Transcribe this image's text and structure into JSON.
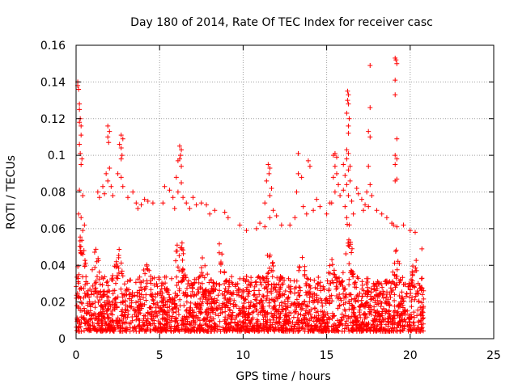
{
  "chart_data": {
    "type": "scatter",
    "title": "Day 180 of 2014, Rate Of TEC Index for receiver casc",
    "xlabel": "GPS time / hours",
    "ylabel": "ROTI / TECUs",
    "xlim": [
      0,
      25
    ],
    "ylim": [
      0,
      0.16
    ],
    "x_ticks": [
      0,
      5,
      10,
      15,
      20,
      25
    ],
    "x_tick_labels": [
      "0",
      "5",
      "10",
      "15",
      "20",
      "25"
    ],
    "y_ticks": [
      0,
      0.02,
      0.04,
      0.06,
      0.08,
      0.1,
      0.12,
      0.14,
      0.16
    ],
    "y_tick_labels": [
      "0",
      "0.02",
      "0.04",
      "0.06",
      "0.08",
      "0.1",
      "0.12",
      "0.14",
      "0.16"
    ],
    "grid": true,
    "marker": "plus",
    "marker_color": "#ff0000",
    "series": [
      {
        "name": "ROTI",
        "points": [
          [
            0.1,
            0.138
          ],
          [
            0.1,
            0.14
          ],
          [
            0.15,
            0.136
          ],
          [
            0.2,
            0.128
          ],
          [
            0.2,
            0.125
          ],
          [
            0.25,
            0.12
          ],
          [
            0.2,
            0.118
          ],
          [
            0.3,
            0.116
          ],
          [
            0.3,
            0.111
          ],
          [
            0.2,
            0.106
          ],
          [
            0.25,
            0.101
          ],
          [
            0.35,
            0.098
          ],
          [
            0.3,
            0.095
          ],
          [
            0.2,
            0.081
          ],
          [
            0.4,
            0.078
          ],
          [
            0.15,
            0.068
          ],
          [
            0.3,
            0.066
          ],
          [
            0.5,
            0.062
          ],
          [
            0.4,
            0.059
          ],
          [
            1.6,
            0.083
          ],
          [
            1.3,
            0.08
          ],
          [
            1.7,
            0.079
          ],
          [
            1.4,
            0.077
          ],
          [
            1.9,
            0.116
          ],
          [
            2.0,
            0.113
          ],
          [
            1.9,
            0.11
          ],
          [
            1.95,
            0.107
          ],
          [
            2.0,
            0.093
          ],
          [
            1.8,
            0.09
          ],
          [
            1.9,
            0.086
          ],
          [
            2.1,
            0.083
          ],
          [
            2.2,
            0.078
          ],
          [
            2.7,
            0.111
          ],
          [
            2.8,
            0.109
          ],
          [
            2.6,
            0.106
          ],
          [
            2.7,
            0.104
          ],
          [
            2.75,
            0.1
          ],
          [
            2.7,
            0.098
          ],
          [
            2.5,
            0.09
          ],
          [
            2.7,
            0.088
          ],
          [
            2.8,
            0.083
          ],
          [
            3.4,
            0.08
          ],
          [
            3.1,
            0.077
          ],
          [
            3.6,
            0.074
          ],
          [
            3.9,
            0.073
          ],
          [
            4.1,
            0.076
          ],
          [
            4.3,
            0.075
          ],
          [
            4.6,
            0.074
          ],
          [
            3.7,
            0.071
          ],
          [
            5.3,
            0.083
          ],
          [
            5.6,
            0.081
          ],
          [
            5.8,
            0.077
          ],
          [
            5.2,
            0.074
          ],
          [
            5.9,
            0.071
          ],
          [
            6.2,
            0.105
          ],
          [
            6.3,
            0.103
          ],
          [
            6.25,
            0.1
          ],
          [
            6.2,
            0.098
          ],
          [
            6.1,
            0.097
          ],
          [
            6.3,
            0.094
          ],
          [
            6.0,
            0.088
          ],
          [
            6.3,
            0.085
          ],
          [
            6.1,
            0.08
          ],
          [
            6.4,
            0.077
          ],
          [
            6.6,
            0.074
          ],
          [
            6.8,
            0.071
          ],
          [
            7.0,
            0.077
          ],
          [
            7.2,
            0.073
          ],
          [
            7.5,
            0.074
          ],
          [
            7.8,
            0.073
          ],
          [
            8.0,
            0.068
          ],
          [
            8.3,
            0.07
          ],
          [
            8.9,
            0.069
          ],
          [
            9.1,
            0.066
          ],
          [
            9.8,
            0.062
          ],
          [
            10.2,
            0.059
          ],
          [
            10.8,
            0.06
          ],
          [
            11.0,
            0.063
          ],
          [
            11.3,
            0.061
          ],
          [
            11.5,
            0.095
          ],
          [
            11.6,
            0.093
          ],
          [
            11.55,
            0.09
          ],
          [
            11.4,
            0.086
          ],
          [
            11.7,
            0.082
          ],
          [
            11.6,
            0.078
          ],
          [
            11.3,
            0.074
          ],
          [
            11.8,
            0.07
          ],
          [
            11.6,
            0.066
          ],
          [
            12.0,
            0.067
          ],
          [
            12.3,
            0.062
          ],
          [
            12.8,
            0.062
          ],
          [
            13.1,
            0.066
          ],
          [
            13.3,
            0.101
          ],
          [
            13.3,
            0.09
          ],
          [
            13.5,
            0.088
          ],
          [
            13.2,
            0.08
          ],
          [
            13.6,
            0.072
          ],
          [
            13.9,
            0.097
          ],
          [
            14.0,
            0.094
          ],
          [
            13.8,
            0.068
          ],
          [
            14.2,
            0.07
          ],
          [
            14.4,
            0.076
          ],
          [
            14.6,
            0.072
          ],
          [
            15.0,
            0.068
          ],
          [
            15.2,
            0.074
          ],
          [
            15.4,
            0.1
          ],
          [
            15.5,
            0.101
          ],
          [
            15.6,
            0.099
          ],
          [
            15.5,
            0.094
          ],
          [
            15.6,
            0.09
          ],
          [
            15.4,
            0.088
          ],
          [
            15.7,
            0.084
          ],
          [
            15.5,
            0.08
          ],
          [
            15.8,
            0.078
          ],
          [
            15.3,
            0.074
          ],
          [
            16.0,
            0.095
          ],
          [
            16.2,
            0.103
          ],
          [
            16.3,
            0.101
          ],
          [
            16.2,
            0.098
          ],
          [
            16.4,
            0.094
          ],
          [
            16.3,
            0.092
          ],
          [
            16.1,
            0.089
          ],
          [
            16.4,
            0.086
          ],
          [
            16.2,
            0.084
          ],
          [
            16.0,
            0.081
          ],
          [
            16.3,
            0.078
          ],
          [
            16.5,
            0.075
          ],
          [
            16.1,
            0.072
          ],
          [
            16.6,
            0.068
          ],
          [
            16.2,
            0.066
          ],
          [
            16.25,
            0.135
          ],
          [
            16.3,
            0.133
          ],
          [
            16.25,
            0.13
          ],
          [
            16.3,
            0.128
          ],
          [
            16.2,
            0.123
          ],
          [
            16.35,
            0.12
          ],
          [
            16.3,
            0.116
          ],
          [
            16.3,
            0.112
          ],
          [
            16.8,
            0.082
          ],
          [
            16.9,
            0.079
          ],
          [
            17.1,
            0.076
          ],
          [
            17.3,
            0.073
          ],
          [
            17.2,
            0.07
          ],
          [
            17.5,
            0.094
          ],
          [
            17.6,
            0.084
          ],
          [
            17.4,
            0.08
          ],
          [
            17.7,
            0.078
          ],
          [
            17.5,
            0.072
          ],
          [
            17.6,
            0.149
          ],
          [
            17.6,
            0.126
          ],
          [
            17.5,
            0.113
          ],
          [
            17.6,
            0.11
          ],
          [
            18.0,
            0.07
          ],
          [
            18.3,
            0.068
          ],
          [
            18.6,
            0.066
          ],
          [
            18.9,
            0.063
          ],
          [
            19.1,
            0.153
          ],
          [
            19.15,
            0.152
          ],
          [
            19.2,
            0.15
          ],
          [
            19.1,
            0.141
          ],
          [
            19.1,
            0.133
          ],
          [
            19.2,
            0.109
          ],
          [
            19.1,
            0.1
          ],
          [
            19.2,
            0.098
          ],
          [
            19.1,
            0.095
          ],
          [
            19.2,
            0.087
          ],
          [
            19.1,
            0.086
          ],
          [
            19.0,
            0.062
          ],
          [
            19.2,
            0.061
          ],
          [
            19.6,
            0.062
          ],
          [
            20.0,
            0.059
          ],
          [
            20.3,
            0.058
          ],
          [
            20.7,
            0.049
          ]
        ]
      }
    ]
  }
}
